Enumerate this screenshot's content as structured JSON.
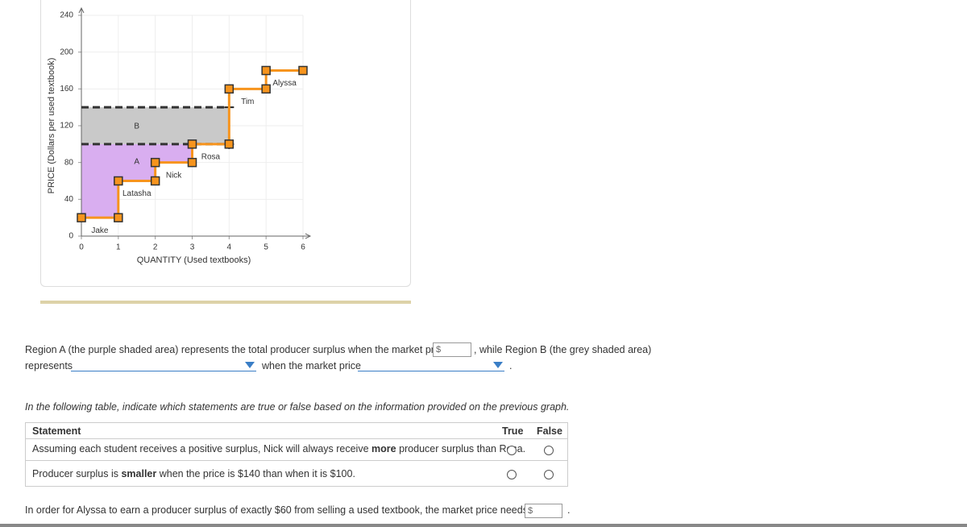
{
  "chart_data": {
    "type": "step",
    "xlabel": "QUANTITY (Used textbooks)",
    "ylabel": "PRICE (Dollars per used textbook)",
    "x": [
      0,
      1,
      1,
      2,
      2,
      3,
      3,
      4,
      4,
      5,
      5,
      6
    ],
    "series": [
      {
        "color": "#f7941d",
        "values": [
          20,
          20,
          60,
          60,
          80,
          80,
          100,
          100,
          160,
          160,
          180,
          180
        ]
      }
    ],
    "sellers": [
      "Jake",
      "Latasha",
      "Nick",
      "Rosa",
      "Tim",
      "Alyssa"
    ],
    "reference_lines": [
      100,
      140
    ],
    "regions": [
      {
        "label": "A",
        "color": "#d9aef0"
      },
      {
        "label": "B",
        "color": "#c9c9c9"
      }
    ],
    "xlim": [
      0,
      6
    ],
    "xticks": [
      0,
      1,
      2,
      3,
      4,
      5,
      6
    ],
    "ylim": [
      0,
      240
    ],
    "yticks": [
      0,
      40,
      80,
      120,
      160,
      200,
      240
    ],
    "grid": true
  },
  "question": {
    "part1": "Region A (the purple shaded area) represents the total producer surplus when the market price is",
    "currency": "$",
    "part2": ", while Region B (the grey shaded area)",
    "part3": "represents",
    "part4": "when the market price",
    "part5": "."
  },
  "table": {
    "instruction": "In the following table, indicate which statements are true or false based on the information provided on the previous graph.",
    "headers": [
      "Statement",
      "True",
      "False"
    ],
    "rows": [
      [
        "Assuming each student receives a positive surplus, Nick will always receive ",
        "more",
        " producer surplus than Rosa."
      ],
      [
        "Producer surplus is ",
        "smaller",
        " when the price is $140 than when it is $100."
      ]
    ]
  },
  "footer": {
    "text": "In order for Alyssa to earn a producer surplus of exactly $60 from selling a used textbook, the market price needs to be",
    "currency": "$",
    "end": "."
  }
}
